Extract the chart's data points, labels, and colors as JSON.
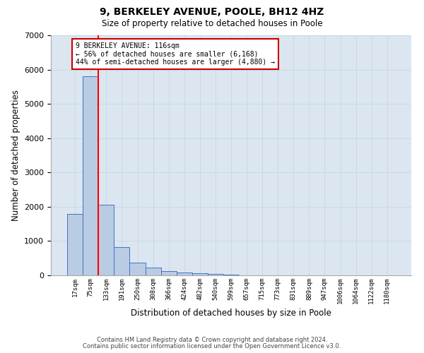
{
  "title1": "9, BERKELEY AVENUE, POOLE, BH12 4HZ",
  "title2": "Size of property relative to detached houses in Poole",
  "xlabel": "Distribution of detached houses by size in Poole",
  "ylabel": "Number of detached properties",
  "categories": [
    "17sqm",
    "75sqm",
    "133sqm",
    "191sqm",
    "250sqm",
    "308sqm",
    "366sqm",
    "424sqm",
    "482sqm",
    "540sqm",
    "599sqm",
    "657sqm",
    "715sqm",
    "773sqm",
    "831sqm",
    "889sqm",
    "947sqm",
    "1006sqm",
    "1064sqm",
    "1122sqm",
    "1180sqm"
  ],
  "values": [
    1800,
    5800,
    2060,
    830,
    370,
    230,
    130,
    90,
    60,
    40,
    30,
    0,
    0,
    0,
    0,
    0,
    0,
    0,
    0,
    0,
    0
  ],
  "bar_color": "#b8cce4",
  "bar_edge_color": "#4472c4",
  "property_bin_index": 1,
  "vline_color": "#ff0000",
  "annotation_text": "9 BERKELEY AVENUE: 116sqm\n← 56% of detached houses are smaller (6,168)\n44% of semi-detached houses are larger (4,880) →",
  "annotation_box_color": "#ffffff",
  "annotation_box_edge": "#cc0000",
  "grid_color": "#c8d8e8",
  "background_color": "#dce6f0",
  "ylim": [
    0,
    7000
  ],
  "yticks": [
    0,
    1000,
    2000,
    3000,
    4000,
    5000,
    6000,
    7000
  ],
  "footer1": "Contains HM Land Registry data © Crown copyright and database right 2024.",
  "footer2": "Contains public sector information licensed under the Open Government Licence v3.0."
}
